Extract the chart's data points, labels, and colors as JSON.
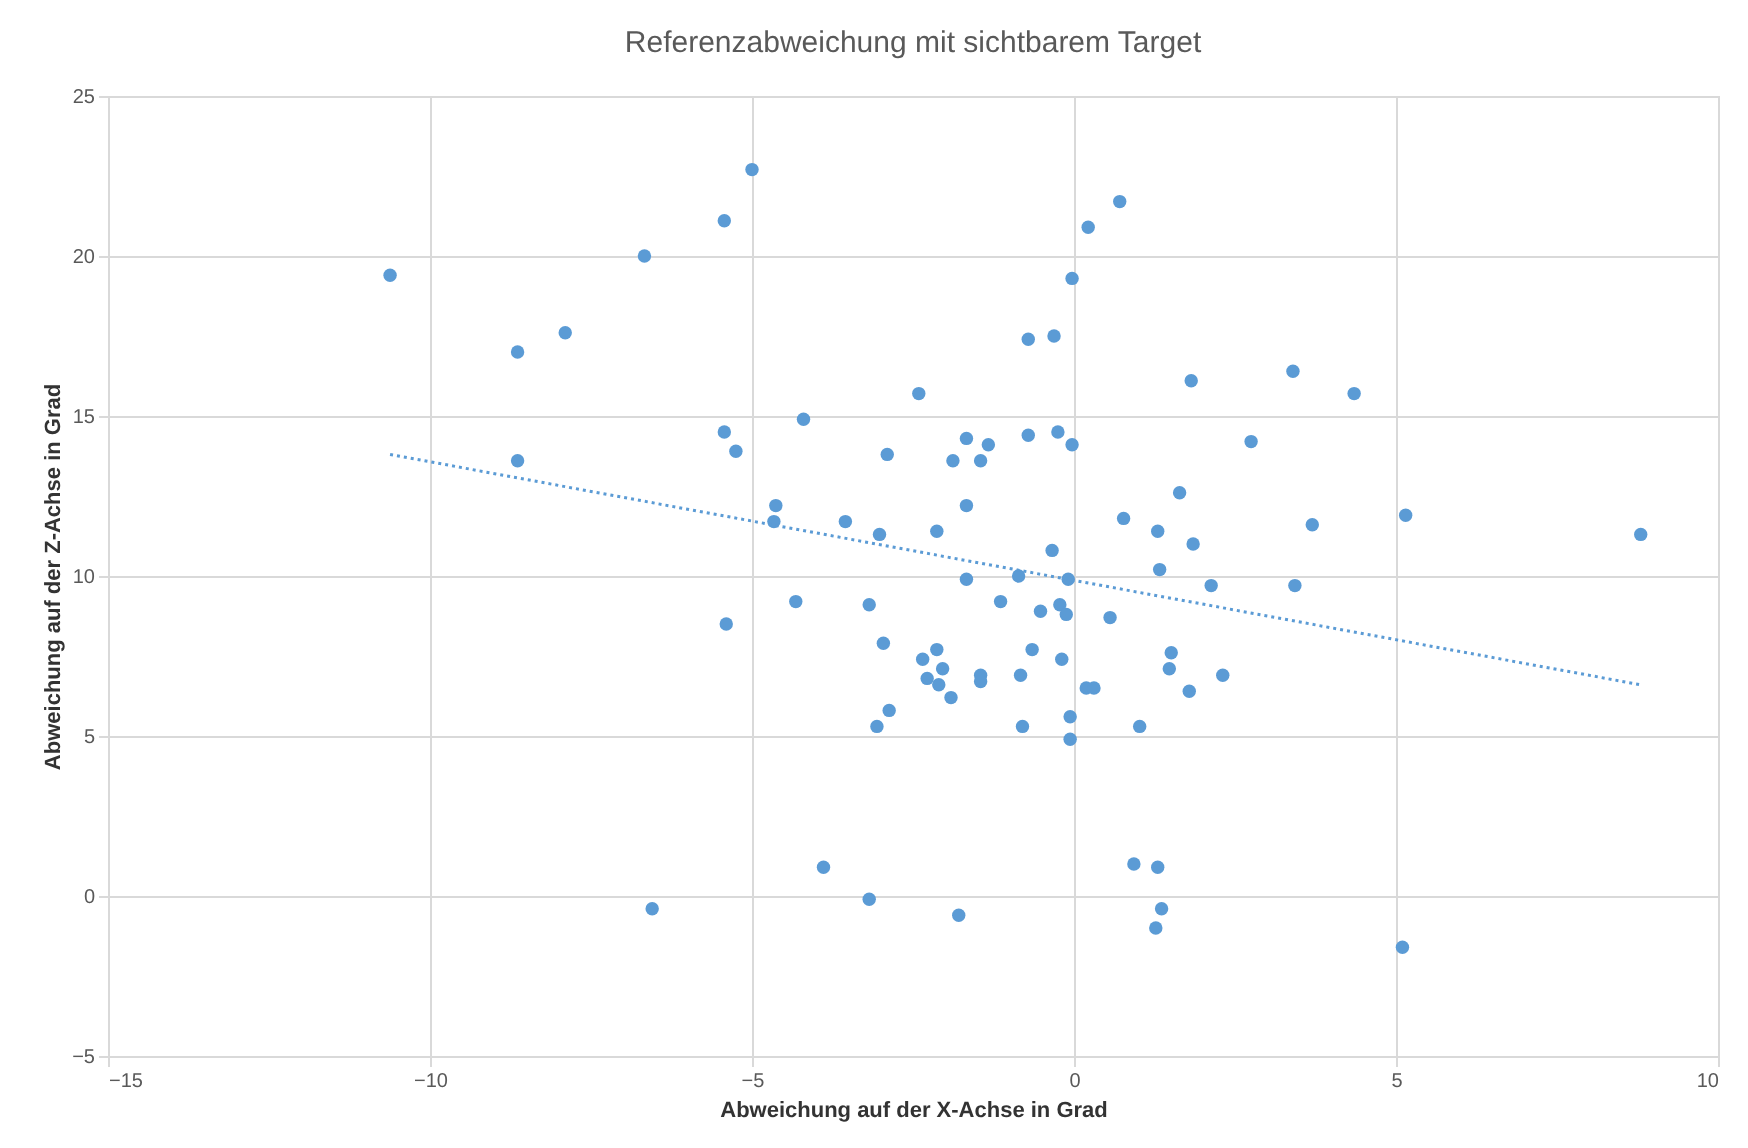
{
  "chart_data": {
    "type": "scatter",
    "title": "Referenzabweichung mit sichtbarem Target",
    "xlabel": "Abweichung auf der X-Achse in Grad",
    "ylabel": "Abweichung auf der Z-Achse in Grad",
    "xlim": [
      -15,
      10
    ],
    "ylim": [
      -5,
      25
    ],
    "xticks": [
      -15,
      -10,
      -5,
      0,
      5,
      10
    ],
    "yticks": [
      -5,
      0,
      5,
      10,
      15,
      20,
      25
    ],
    "grid": true,
    "marker": "circle",
    "series": [
      {
        "color": "#5b9bd5",
        "x": [
          -10.62,
          -8.64,
          -7.9,
          -6.67,
          -5.43,
          -5.0,
          -8.64,
          -5.43,
          -5.25,
          -4.2,
          -4.63,
          -4.66,
          -3.55,
          -3.02,
          -2.9,
          -2.41,
          -2.13,
          -1.88,
          -1.67,
          -1.45,
          -1.33,
          -1.67,
          -0.71,
          -0.25,
          -0.03,
          -0.71,
          -0.31,
          -0.03,
          0.22,
          0.71,
          1.82,
          3.4,
          4.35,
          2.75,
          1.64,
          0.77,
          1.3,
          1.85,
          3.7,
          5.15,
          8.8,
          1.33,
          2.13,
          3.43,
          -0.34,
          -1.67,
          -0.86,
          -0.09,
          -4.32,
          -3.18,
          -1.14,
          -0.52,
          -0.22,
          -0.12,
          0.56,
          -2.96,
          -2.35,
          -2.13,
          -2.04,
          -2.28,
          -2.1,
          -1.45,
          -1.45,
          -1.91,
          -0.65,
          -0.19,
          -0.83,
          0.19,
          0.31,
          1.51,
          1.48,
          2.31,
          1.79,
          -2.87,
          -3.06,
          -0.8,
          -0.06,
          -0.06,
          1.02,
          -3.89,
          0.93,
          1.3,
          -3.18,
          -1.79,
          1.36,
          1.27,
          5.1,
          -5.4,
          -6.55
        ],
        "values": [
          19.4,
          17.0,
          17.6,
          20.0,
          21.1,
          22.7,
          13.6,
          14.5,
          13.9,
          14.9,
          12.2,
          11.7,
          11.7,
          11.3,
          13.8,
          15.7,
          11.4,
          13.6,
          14.3,
          13.6,
          14.1,
          12.2,
          14.4,
          14.5,
          14.1,
          17.4,
          17.5,
          19.3,
          20.9,
          21.7,
          16.1,
          16.4,
          15.7,
          14.2,
          12.6,
          11.8,
          11.4,
          11.0,
          11.6,
          11.9,
          11.3,
          10.2,
          9.7,
          9.7,
          10.8,
          9.9,
          10.0,
          9.9,
          9.2,
          9.1,
          9.2,
          8.9,
          9.1,
          8.8,
          8.7,
          7.9,
          7.4,
          7.7,
          7.1,
          6.8,
          6.6,
          6.9,
          6.7,
          6.2,
          7.7,
          7.4,
          6.9,
          6.5,
          6.5,
          7.6,
          7.1,
          6.9,
          6.4,
          5.8,
          5.3,
          5.3,
          5.6,
          4.9,
          5.3,
          0.9,
          1.0,
          0.9,
          -0.1,
          -0.6,
          -0.4,
          -1.0,
          -1.6,
          8.5,
          -0.4
        ]
      },
      {
        "type": "line",
        "color": "#5b9bd5",
        "line_style": "dotted",
        "marker": "none",
        "x": [
          -10.62,
          8.8
        ],
        "values": [
          13.8,
          6.6
        ]
      }
    ]
  }
}
